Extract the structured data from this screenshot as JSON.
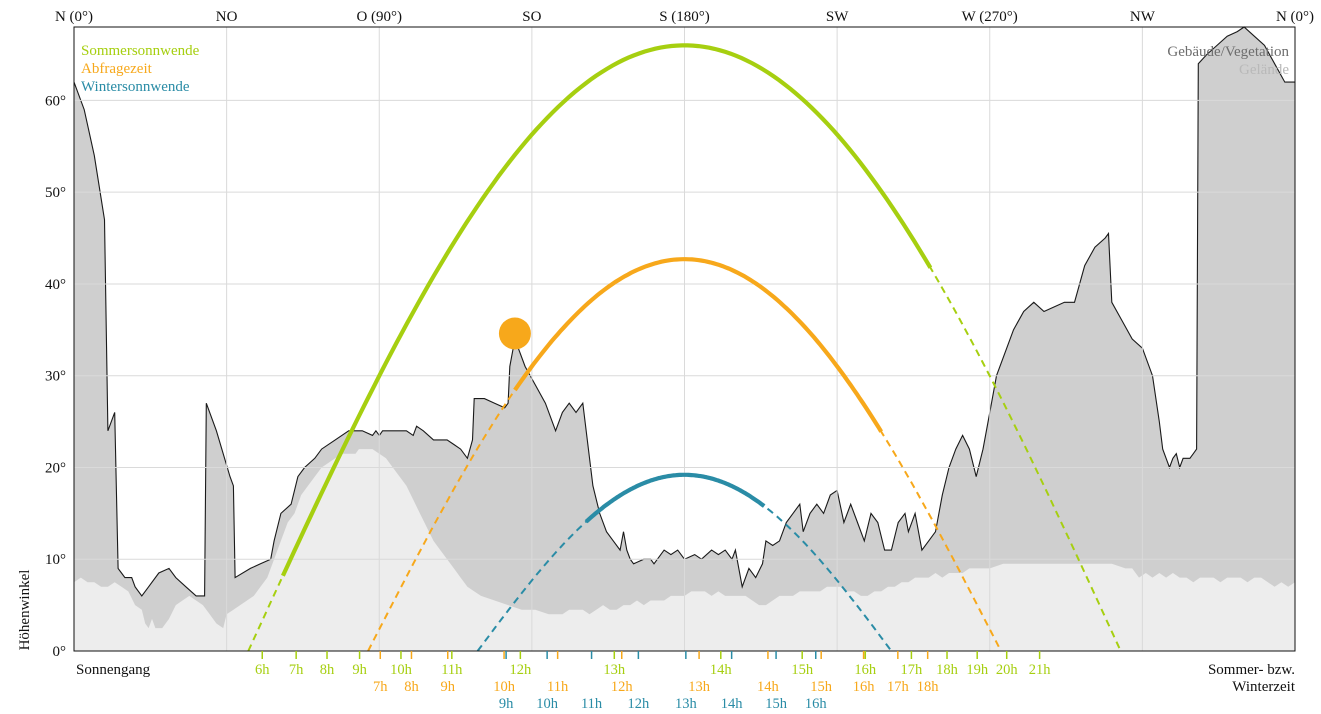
{
  "chart_data": {
    "type": "line",
    "direction_labels": [
      {
        "az": 0,
        "label": "N (0°)"
      },
      {
        "az": 45,
        "label": "NO"
      },
      {
        "az": 90,
        "label": "O (90°)"
      },
      {
        "az": 135,
        "label": "SO"
      },
      {
        "az": 180,
        "label": "S (180°)"
      },
      {
        "az": 225,
        "label": "SW"
      },
      {
        "az": 270,
        "label": "W (270°)"
      },
      {
        "az": 315,
        "label": "NW"
      },
      {
        "az": 360,
        "label": "N (0°)"
      }
    ],
    "x_range": [
      0,
      360
    ],
    "y_range": [
      0,
      68
    ],
    "y_ticks": [
      {
        "value": 0,
        "label": "0°"
      },
      {
        "value": 10,
        "label": "10°"
      },
      {
        "value": 20,
        "label": "20°"
      },
      {
        "value": 30,
        "label": "30°"
      },
      {
        "value": 40,
        "label": "40°"
      },
      {
        "value": 50,
        "label": "50°"
      },
      {
        "value": 60,
        "label": "60°"
      }
    ],
    "ylabel": "Höhenwinkel",
    "bottom_left_label": "Sonnengang",
    "bottom_right_label": [
      "Sommer- bzw.",
      "Winterzeit"
    ],
    "grid": true,
    "legend_left": [
      {
        "name": "Sommersonnwende",
        "color": "#a6cf10"
      },
      {
        "name": "Abfragezeit",
        "color": "#f7a81b"
      },
      {
        "name": "Wintersonnwende",
        "color": "#2a8ca6"
      }
    ],
    "legend_right": [
      {
        "name": "Gebäude/Vegetation",
        "color": "#6d6d6d"
      },
      {
        "name": "Gelände",
        "color": "#b9b9b9"
      }
    ],
    "series": [
      {
        "name": "Sommersonnwende",
        "color": "#a6cf10",
        "rise_az": 51.4,
        "set_az": 308.6,
        "max_alt": 66,
        "visible_from_az": 61.6,
        "visible_to_az": 252.5,
        "hours": [
          {
            "label": "6h",
            "az": 55.5
          },
          {
            "label": "7h",
            "az": 65.5
          },
          {
            "label": "8h",
            "az": 74.6
          },
          {
            "label": "9h",
            "az": 84.2
          },
          {
            "label": "10h",
            "az": 96.4
          },
          {
            "label": "11h",
            "az": 111.4
          },
          {
            "label": "12h",
            "az": 131.6
          },
          {
            "label": "13h",
            "az": 159.3
          },
          {
            "label": "14h",
            "az": 190.7
          },
          {
            "label": "15h",
            "az": 214.7
          },
          {
            "label": "16h",
            "az": 233.3
          },
          {
            "label": "17h",
            "az": 246.9
          },
          {
            "label": "18h",
            "az": 257.4
          },
          {
            "label": "19h",
            "az": 266.3
          },
          {
            "label": "20h",
            "az": 275.0
          },
          {
            "label": "21h",
            "az": 284.7
          }
        ]
      },
      {
        "name": "Abfragezeit",
        "color": "#f7a81b",
        "rise_az": 86.7,
        "set_az": 273.3,
        "max_alt": 42.7,
        "visible_from_az": 130,
        "visible_to_az": 238.0,
        "current": {
          "az": 130,
          "alt": 34.6
        },
        "hours": [
          {
            "label": "7h",
            "az": 90.3
          },
          {
            "label": "8h",
            "az": 99.5
          },
          {
            "label": "9h",
            "az": 110.2
          },
          {
            "label": "10h",
            "az": 126.8
          },
          {
            "label": "11h",
            "az": 142.6
          },
          {
            "label": "12h",
            "az": 161.5
          },
          {
            "label": "13h",
            "az": 184.3
          },
          {
            "label": "14h",
            "az": 204.6
          },
          {
            "label": "15h",
            "az": 220.3
          },
          {
            "label": "16h",
            "az": 232.8
          },
          {
            "label": "17h",
            "az": 242.9
          },
          {
            "label": "18h",
            "az": 251.7
          }
        ]
      },
      {
        "name": "Wintersonnwende",
        "color": "#2a8ca6",
        "rise_az": 119.0,
        "set_az": 241.0,
        "max_alt": 19.2,
        "visible_from_az": 151,
        "visible_to_az": 203.5,
        "hours": [
          {
            "label": "9h",
            "az": 127.4
          },
          {
            "label": "10h",
            "az": 139.5
          },
          {
            "label": "11h",
            "az": 152.6
          },
          {
            "label": "12h",
            "az": 166.4
          },
          {
            "label": "13h",
            "az": 180.4
          },
          {
            "label": "14h",
            "az": 193.9
          },
          {
            "label": "15h",
            "az": 207.0
          },
          {
            "label": "16h",
            "az": 218.7
          }
        ]
      }
    ],
    "horizon_buildings": [
      [
        0,
        62
      ],
      [
        3,
        59
      ],
      [
        6,
        54
      ],
      [
        9,
        47
      ],
      [
        10,
        24
      ],
      [
        12,
        26
      ],
      [
        13,
        9
      ],
      [
        14,
        8.5
      ],
      [
        15,
        8
      ],
      [
        17,
        8
      ],
      [
        18,
        7
      ],
      [
        20,
        6
      ],
      [
        22,
        7
      ],
      [
        25,
        8.5
      ],
      [
        28,
        9
      ],
      [
        30,
        8
      ],
      [
        33,
        7
      ],
      [
        36,
        6
      ],
      [
        38.5,
        6
      ],
      [
        39,
        27
      ],
      [
        42,
        24
      ],
      [
        46,
        19
      ],
      [
        47,
        18
      ],
      [
        47.5,
        8
      ],
      [
        52,
        9
      ],
      [
        55,
        9.5
      ],
      [
        58,
        10
      ],
      [
        59,
        12
      ],
      [
        61,
        15
      ],
      [
        64,
        16
      ],
      [
        66,
        19
      ],
      [
        68,
        20
      ],
      [
        71,
        21
      ],
      [
        73,
        22
      ],
      [
        77,
        23
      ],
      [
        81,
        24
      ],
      [
        85,
        24
      ],
      [
        88,
        23.5
      ],
      [
        89,
        24
      ],
      [
        90,
        23.5
      ],
      [
        91,
        24
      ],
      [
        93,
        24
      ],
      [
        95,
        24
      ],
      [
        98,
        24
      ],
      [
        100,
        23.5
      ],
      [
        101,
        24.5
      ],
      [
        103,
        24
      ],
      [
        106,
        23
      ],
      [
        108,
        23
      ],
      [
        110,
        23
      ],
      [
        112,
        22.5
      ],
      [
        114,
        22
      ],
      [
        116,
        21
      ],
      [
        117.5,
        23
      ],
      [
        118,
        27.5
      ],
      [
        121,
        27.5
      ],
      [
        124,
        27
      ],
      [
        127,
        26.5
      ],
      [
        128,
        27
      ],
      [
        128.5,
        31
      ],
      [
        130,
        34
      ],
      [
        133,
        31
      ],
      [
        136,
        29
      ],
      [
        139,
        27
      ],
      [
        142,
        24
      ],
      [
        144,
        26
      ],
      [
        146,
        27
      ],
      [
        148,
        26
      ],
      [
        150,
        27
      ],
      [
        153,
        18
      ],
      [
        155,
        15
      ],
      [
        157,
        13
      ],
      [
        159,
        12
      ],
      [
        161,
        11
      ],
      [
        162,
        13
      ],
      [
        163,
        11
      ],
      [
        164,
        10
      ],
      [
        165,
        9.5
      ],
      [
        168,
        10
      ],
      [
        170,
        10
      ],
      [
        171,
        9.5
      ],
      [
        172,
        10
      ],
      [
        174,
        11
      ],
      [
        176,
        10.5
      ],
      [
        178,
        11
      ],
      [
        180,
        10
      ],
      [
        183,
        10.5
      ],
      [
        185,
        10
      ],
      [
        188,
        11
      ],
      [
        190,
        10.5
      ],
      [
        192,
        11
      ],
      [
        194,
        10
      ],
      [
        195,
        11
      ],
      [
        196,
        9
      ],
      [
        197,
        7
      ],
      [
        199,
        9
      ],
      [
        201,
        8
      ],
      [
        203,
        9.5
      ],
      [
        204,
        12
      ],
      [
        206,
        11.5
      ],
      [
        208,
        12
      ],
      [
        210,
        14
      ],
      [
        212,
        15
      ],
      [
        214,
        16
      ],
      [
        215,
        13
      ],
      [
        217,
        15
      ],
      [
        219,
        16
      ],
      [
        221,
        15
      ],
      [
        223,
        17
      ],
      [
        225,
        17.5
      ],
      [
        227,
        14
      ],
      [
        229,
        16
      ],
      [
        231,
        14
      ],
      [
        233,
        12
      ],
      [
        235,
        15
      ],
      [
        237,
        14
      ],
      [
        239,
        11
      ],
      [
        241,
        11
      ],
      [
        243,
        14
      ],
      [
        245,
        15
      ],
      [
        246,
        13
      ],
      [
        248,
        15
      ],
      [
        249,
        13
      ],
      [
        250,
        11
      ],
      [
        252,
        12
      ],
      [
        254,
        13
      ],
      [
        256,
        17
      ],
      [
        258,
        20
      ],
      [
        260,
        22
      ],
      [
        262,
        23.5
      ],
      [
        264,
        22
      ],
      [
        266,
        19
      ],
      [
        268,
        22
      ],
      [
        270,
        26
      ],
      [
        272,
        30
      ],
      [
        275,
        33
      ],
      [
        277,
        35
      ],
      [
        280,
        37
      ],
      [
        283,
        38
      ],
      [
        286,
        37
      ],
      [
        289,
        37.5
      ],
      [
        292,
        38
      ],
      [
        295,
        38
      ],
      [
        298,
        42
      ],
      [
        301,
        44
      ],
      [
        304,
        45
      ],
      [
        305,
        45.5
      ],
      [
        306,
        38
      ],
      [
        309,
        36
      ],
      [
        312,
        34
      ],
      [
        315,
        33
      ],
      [
        318,
        30
      ],
      [
        320,
        25
      ],
      [
        321,
        22
      ],
      [
        322,
        21
      ],
      [
        323,
        20
      ],
      [
        324,
        21
      ],
      [
        325,
        21.5
      ],
      [
        326,
        20
      ],
      [
        327,
        21
      ],
      [
        329,
        21
      ],
      [
        330,
        21.5
      ],
      [
        331,
        22
      ],
      [
        331.5,
        64
      ],
      [
        334,
        65
      ],
      [
        337,
        66
      ],
      [
        340,
        67
      ],
      [
        343,
        67.5
      ],
      [
        345,
        68
      ],
      [
        348,
        67
      ],
      [
        351,
        66
      ],
      [
        354,
        64
      ],
      [
        357,
        62
      ],
      [
        360,
        62
      ]
    ],
    "horizon_terrain": [
      [
        0,
        7.5
      ],
      [
        2,
        8
      ],
      [
        4,
        7.5
      ],
      [
        6,
        7.5
      ],
      [
        8,
        7
      ],
      [
        10,
        7
      ],
      [
        12,
        7.5
      ],
      [
        14,
        7
      ],
      [
        16,
        6.5
      ],
      [
        18,
        5
      ],
      [
        20,
        4.5
      ],
      [
        21,
        3
      ],
      [
        22,
        2.5
      ],
      [
        23,
        3.5
      ],
      [
        24,
        2.5
      ],
      [
        26,
        2.5
      ],
      [
        28,
        3.5
      ],
      [
        30,
        5
      ],
      [
        32,
        5.5
      ],
      [
        34,
        6
      ],
      [
        36,
        5.5
      ],
      [
        38,
        5
      ],
      [
        40,
        4
      ],
      [
        42,
        3
      ],
      [
        44,
        2.5
      ],
      [
        45,
        4
      ],
      [
        47,
        4.5
      ],
      [
        49,
        5
      ],
      [
        51,
        5.5
      ],
      [
        53,
        6
      ],
      [
        55,
        7
      ],
      [
        57,
        8
      ],
      [
        59,
        10
      ],
      [
        61,
        12
      ],
      [
        63,
        14
      ],
      [
        65,
        15
      ],
      [
        67,
        17
      ],
      [
        69,
        18
      ],
      [
        71,
        19
      ],
      [
        73,
        20
      ],
      [
        75,
        20.5
      ],
      [
        77,
        21
      ],
      [
        79,
        21.5
      ],
      [
        81,
        21.5
      ],
      [
        83,
        21.5
      ],
      [
        84,
        22
      ],
      [
        86,
        22
      ],
      [
        88,
        22
      ],
      [
        90,
        21.5
      ],
      [
        92,
        21
      ],
      [
        94,
        20
      ],
      [
        96,
        19
      ],
      [
        98,
        18
      ],
      [
        100,
        16.5
      ],
      [
        102,
        15
      ],
      [
        104,
        13.5
      ],
      [
        106,
        12
      ],
      [
        108,
        11
      ],
      [
        110,
        10
      ],
      [
        112,
        9
      ],
      [
        114,
        8
      ],
      [
        116,
        7
      ],
      [
        118,
        6.5
      ],
      [
        120,
        6
      ],
      [
        124,
        5.5
      ],
      [
        128,
        5
      ],
      [
        132,
        4.5
      ],
      [
        136,
        4.5
      ],
      [
        140,
        4
      ],
      [
        144,
        4
      ],
      [
        146,
        4.5
      ],
      [
        148,
        4.5
      ],
      [
        150,
        4.5
      ],
      [
        152,
        4
      ],
      [
        154,
        4.5
      ],
      [
        156,
        5
      ],
      [
        158,
        4.5
      ],
      [
        160,
        4.5
      ],
      [
        162,
        5
      ],
      [
        164,
        5
      ],
      [
        166,
        5.5
      ],
      [
        168,
        5
      ],
      [
        170,
        5.5
      ],
      [
        172,
        5.5
      ],
      [
        174,
        5.5
      ],
      [
        176,
        6
      ],
      [
        178,
        6
      ],
      [
        180,
        6
      ],
      [
        182,
        6.5
      ],
      [
        184,
        6.5
      ],
      [
        186,
        6.5
      ],
      [
        188,
        6
      ],
      [
        190,
        6.5
      ],
      [
        192,
        6
      ],
      [
        194,
        6
      ],
      [
        196,
        6
      ],
      [
        198,
        6
      ],
      [
        200,
        5.5
      ],
      [
        202,
        5
      ],
      [
        204,
        5
      ],
      [
        206,
        5.5
      ],
      [
        208,
        6
      ],
      [
        210,
        6
      ],
      [
        212,
        6
      ],
      [
        214,
        6.5
      ],
      [
        216,
        6.5
      ],
      [
        218,
        6.5
      ],
      [
        220,
        6.5
      ],
      [
        222,
        7
      ],
      [
        224,
        7
      ],
      [
        226,
        7
      ],
      [
        228,
        6.5
      ],
      [
        230,
        6.5
      ],
      [
        232,
        6
      ],
      [
        234,
        6
      ],
      [
        236,
        6.5
      ],
      [
        238,
        6.5
      ],
      [
        240,
        7
      ],
      [
        242,
        7
      ],
      [
        244,
        7.5
      ],
      [
        246,
        7.5
      ],
      [
        248,
        8
      ],
      [
        250,
        8
      ],
      [
        252,
        8
      ],
      [
        254,
        8.5
      ],
      [
        256,
        8
      ],
      [
        258,
        8.5
      ],
      [
        260,
        8.5
      ],
      [
        262,
        8.5
      ],
      [
        264,
        9
      ],
      [
        266,
        9
      ],
      [
        270,
        9
      ],
      [
        274,
        9.5
      ],
      [
        278,
        9.5
      ],
      [
        282,
        9.5
      ],
      [
        286,
        9.5
      ],
      [
        290,
        9.5
      ],
      [
        294,
        9.5
      ],
      [
        298,
        9.5
      ],
      [
        302,
        9.5
      ],
      [
        306,
        9.5
      ],
      [
        310,
        9
      ],
      [
        312,
        9
      ],
      [
        314,
        8
      ],
      [
        316,
        8.5
      ],
      [
        318,
        8
      ],
      [
        320,
        8.5
      ],
      [
        322,
        8
      ],
      [
        324,
        8.5
      ],
      [
        326,
        8
      ],
      [
        328,
        8
      ],
      [
        330,
        7.5
      ],
      [
        332,
        8
      ],
      [
        334,
        8
      ],
      [
        336,
        8
      ],
      [
        338,
        7.5
      ],
      [
        340,
        8
      ],
      [
        342,
        8
      ],
      [
        344,
        8
      ],
      [
        346,
        7.5
      ],
      [
        348,
        8
      ],
      [
        350,
        8
      ],
      [
        352,
        7.5
      ],
      [
        354,
        7
      ],
      [
        356,
        7.5
      ],
      [
        358,
        7
      ],
      [
        360,
        7.5
      ]
    ]
  }
}
